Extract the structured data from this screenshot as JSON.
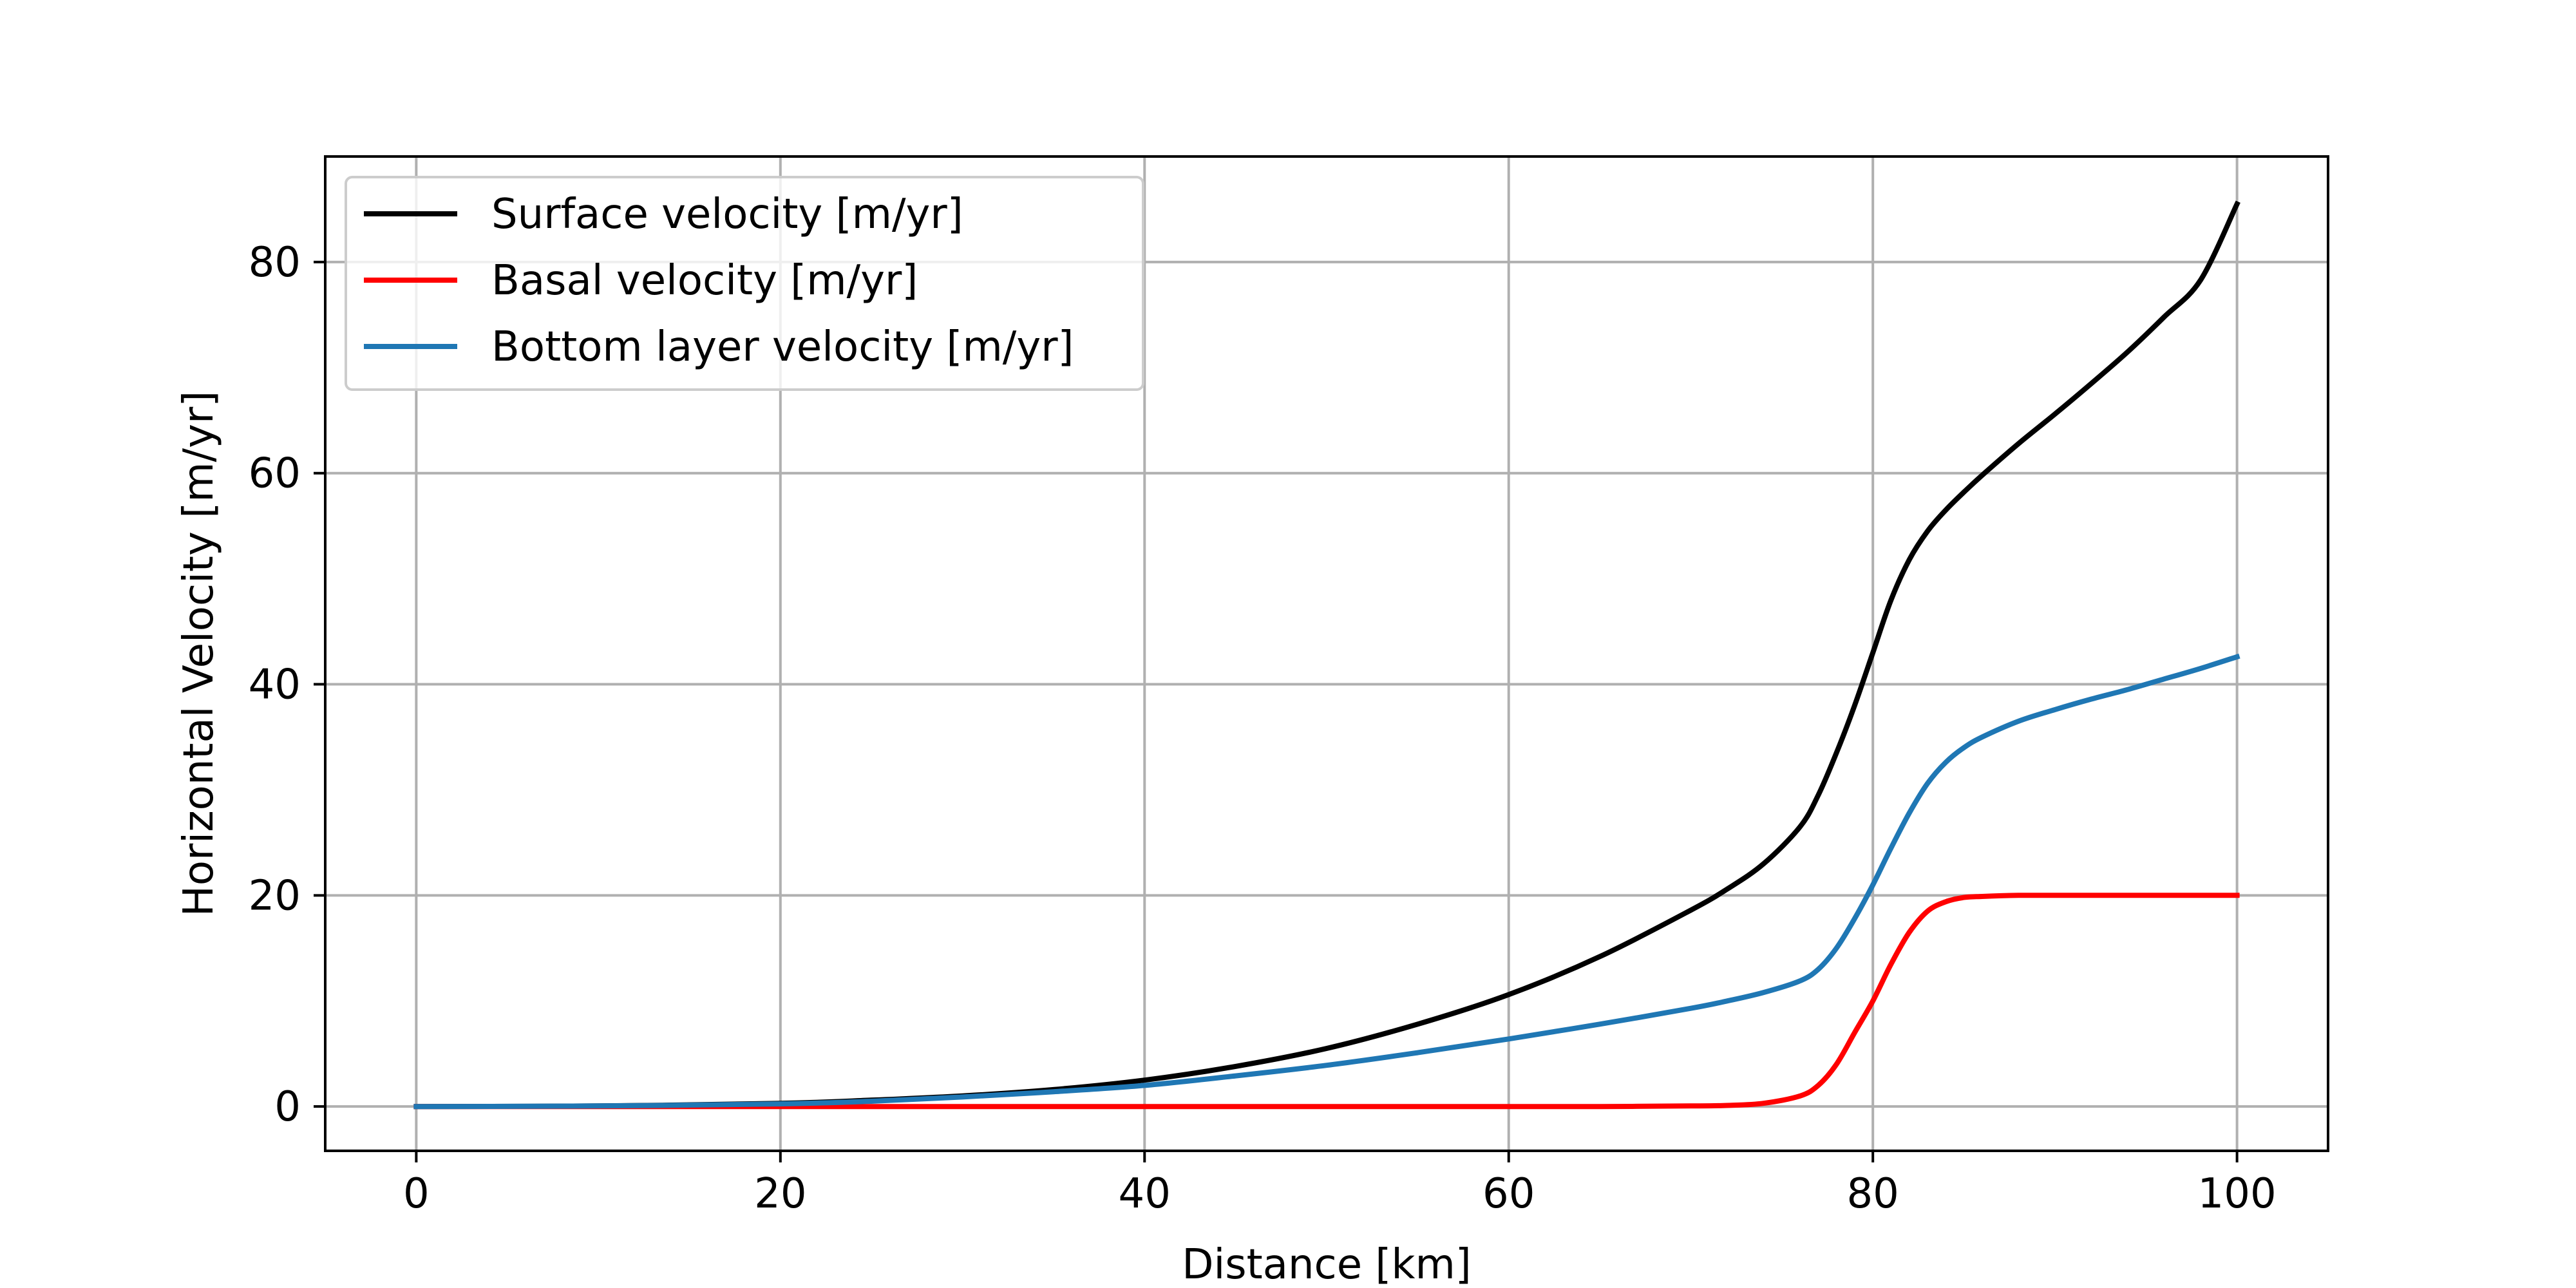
{
  "chart_data": {
    "type": "line",
    "title": "",
    "xlabel": "Distance [km]",
    "ylabel": "Horizontal Velocity [m/yr]",
    "xlim": [
      -5,
      105
    ],
    "ylim": [
      -4.2,
      90
    ],
    "xticks": [
      0,
      20,
      40,
      60,
      80,
      100
    ],
    "yticks": [
      0,
      20,
      40,
      60,
      80
    ],
    "xtick_labels": [
      "0",
      "20",
      "40",
      "60",
      "80",
      "100"
    ],
    "ytick_labels": [
      "0",
      "20",
      "40",
      "60",
      "80"
    ],
    "grid": true,
    "legend_position": "top-left",
    "x": [
      0,
      10,
      20,
      25,
      30,
      35,
      40,
      45,
      50,
      55,
      60,
      65,
      70,
      72,
      74,
      76,
      77,
      78,
      79,
      80,
      81,
      82,
      83,
      84,
      85,
      86,
      88,
      90,
      92,
      94,
      96,
      98,
      100
    ],
    "series": [
      {
        "name": "Surface velocity [m/yr]",
        "color": "#000000",
        "values": [
          0,
          0.05,
          0.3,
          0.6,
          1.0,
          1.6,
          2.5,
          3.8,
          5.5,
          7.8,
          10.6,
          14.2,
          18.6,
          20.6,
          23.0,
          26.5,
          29.5,
          33.5,
          38.0,
          43.0,
          48.0,
          51.8,
          54.5,
          56.5,
          58.2,
          59.8,
          62.8,
          65.6,
          68.5,
          71.5,
          74.8,
          78.3,
          85.5
        ]
      },
      {
        "name": "Basal velocity [m/yr]",
        "color": "#ff0000",
        "values": [
          0,
          0,
          0,
          0,
          0,
          0,
          0,
          0,
          0,
          0,
          0,
          0,
          0.05,
          0.1,
          0.3,
          1.0,
          2.0,
          4.0,
          7.0,
          10.0,
          13.5,
          16.5,
          18.5,
          19.4,
          19.8,
          19.9,
          20.0,
          20.0,
          20.0,
          20.0,
          20.0,
          20.0,
          20.0
        ]
      },
      {
        "name": "Bottom layer velocity [m/yr]",
        "color": "#1f77b4",
        "values": [
          0,
          0.05,
          0.25,
          0.5,
          0.9,
          1.4,
          2.0,
          2.9,
          3.9,
          5.1,
          6.4,
          7.8,
          9.3,
          10.0,
          10.8,
          11.9,
          13.0,
          15.0,
          17.8,
          21.0,
          24.5,
          27.8,
          30.6,
          32.6,
          34.0,
          35.0,
          36.5,
          37.6,
          38.6,
          39.5,
          40.5,
          41.5,
          42.6
        ]
      }
    ]
  }
}
